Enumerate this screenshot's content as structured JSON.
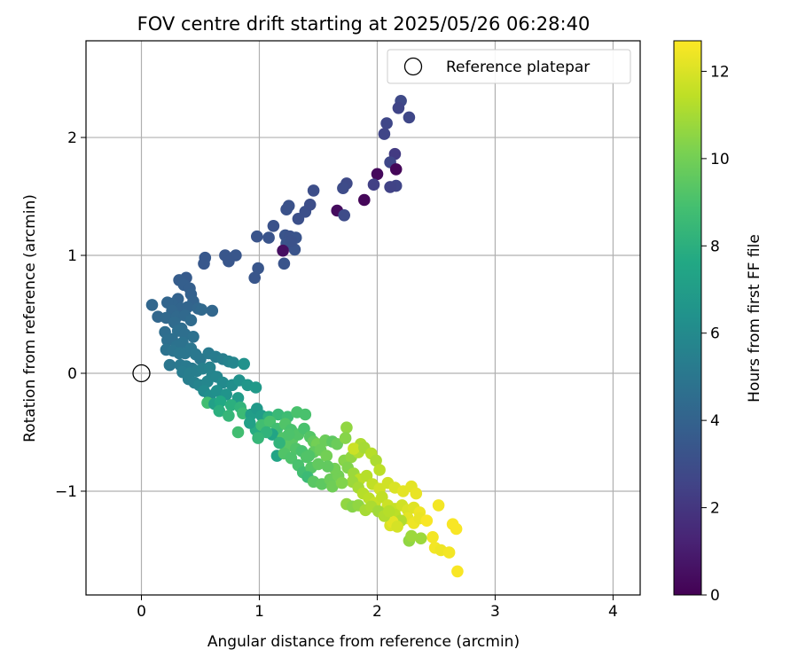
{
  "chart_data": {
    "type": "scatter",
    "title": "FOV centre drift starting at 2025/05/26 06:28:40",
    "xlabel": "Angular distance from reference (arcmin)",
    "ylabel": "Rotation from reference (arcmin)",
    "xlim": [
      -0.47,
      4.23
    ],
    "ylim": [
      -1.88,
      2.82
    ],
    "xticks": [
      0,
      1,
      2,
      3,
      4
    ],
    "yticks": [
      -1,
      0,
      1,
      2
    ],
    "grid": true,
    "legend": {
      "placement": "top-right",
      "entries": [
        "Reference platepar"
      ]
    },
    "reference_point": {
      "x": 0,
      "y": 0,
      "label": "Reference platepar"
    },
    "colorbar": {
      "label": "Hours from first FF file",
      "colormap": "viridis",
      "range": [
        0,
        12.7
      ],
      "ticks": [
        0,
        2,
        4,
        6,
        8,
        10,
        12
      ]
    },
    "points": [
      [
        2.2,
        2.31,
        2.8
      ],
      [
        2.18,
        2.25,
        2.6
      ],
      [
        2.27,
        2.17,
        2.7
      ],
      [
        2.08,
        2.12,
        2.7
      ],
      [
        2.06,
        2.03,
        2.6
      ],
      [
        2.15,
        1.86,
        2.2
      ],
      [
        2.11,
        1.79,
        2.7
      ],
      [
        2.16,
        1.73,
        0.2
      ],
      [
        2.0,
        1.69,
        0.3
      ],
      [
        1.97,
        1.6,
        2.4
      ],
      [
        2.16,
        1.59,
        2.6
      ],
      [
        2.11,
        1.58,
        2.5
      ],
      [
        1.89,
        1.47,
        0.2
      ],
      [
        1.74,
        1.61,
        2.8
      ],
      [
        1.71,
        1.57,
        2.9
      ],
      [
        1.66,
        1.38,
        0.4
      ],
      [
        1.72,
        1.34,
        2.9
      ],
      [
        1.46,
        1.55,
        3.0
      ],
      [
        1.39,
        1.37,
        3.1
      ],
      [
        1.43,
        1.43,
        3.0
      ],
      [
        1.33,
        1.31,
        3.1
      ],
      [
        1.25,
        1.42,
        3.2
      ],
      [
        1.23,
        1.39,
        3.2
      ],
      [
        1.12,
        1.25,
        3.2
      ],
      [
        1.22,
        1.17,
        3.3
      ],
      [
        1.26,
        1.16,
        3.2
      ],
      [
        1.31,
        1.15,
        3.3
      ],
      [
        1.23,
        1.1,
        3.3
      ],
      [
        1.3,
        1.05,
        3.3
      ],
      [
        1.2,
        1.04,
        0.5
      ],
      [
        1.27,
        1.12,
        3.2
      ],
      [
        1.21,
        0.93,
        3.3
      ],
      [
        0.98,
        1.16,
        3.3
      ],
      [
        1.08,
        1.15,
        3.3
      ],
      [
        0.99,
        0.89,
        3.4
      ],
      [
        0.96,
        0.81,
        3.4
      ],
      [
        0.8,
        1.0,
        3.4
      ],
      [
        0.71,
        1.0,
        3.4
      ],
      [
        0.74,
        0.95,
        3.4
      ],
      [
        0.54,
        0.98,
        3.5
      ],
      [
        0.53,
        0.93,
        3.5
      ],
      [
        0.38,
        0.81,
        3.6
      ],
      [
        0.32,
        0.79,
        3.7
      ],
      [
        0.36,
        0.75,
        3.8
      ],
      [
        0.41,
        0.72,
        3.8
      ],
      [
        0.42,
        0.67,
        3.9
      ],
      [
        0.44,
        0.61,
        4.0
      ],
      [
        0.31,
        0.63,
        4.0
      ],
      [
        0.26,
        0.59,
        4.1
      ],
      [
        0.34,
        0.55,
        4.1
      ],
      [
        0.39,
        0.56,
        4.1
      ],
      [
        0.22,
        0.6,
        4.1
      ],
      [
        0.26,
        0.53,
        4.2
      ],
      [
        0.09,
        0.58,
        4.2
      ],
      [
        0.14,
        0.48,
        4.2
      ],
      [
        0.21,
        0.47,
        4.3
      ],
      [
        0.3,
        0.48,
        4.3
      ],
      [
        0.37,
        0.49,
        4.3
      ],
      [
        0.42,
        0.45,
        4.4
      ],
      [
        0.48,
        0.55,
        4.2
      ],
      [
        0.6,
        0.53,
        4.2
      ],
      [
        0.51,
        0.54,
        4.3
      ],
      [
        0.28,
        0.43,
        4.4
      ],
      [
        0.34,
        0.38,
        4.5
      ],
      [
        0.31,
        0.36,
        4.6
      ],
      [
        0.2,
        0.35,
        4.5
      ],
      [
        0.22,
        0.28,
        4.6
      ],
      [
        0.26,
        0.29,
        4.6
      ],
      [
        0.37,
        0.33,
        4.6
      ],
      [
        0.44,
        0.31,
        4.7
      ],
      [
        0.35,
        0.26,
        4.8
      ],
      [
        0.3,
        0.23,
        4.8
      ],
      [
        0.21,
        0.2,
        4.8
      ],
      [
        0.27,
        0.19,
        4.9
      ],
      [
        0.32,
        0.17,
        5.0
      ],
      [
        0.37,
        0.17,
        5.0
      ],
      [
        0.42,
        0.21,
        5.0
      ],
      [
        0.46,
        0.16,
        5.1
      ],
      [
        0.5,
        0.12,
        5.1
      ],
      [
        0.57,
        0.17,
        5.2
      ],
      [
        0.63,
        0.14,
        5.3
      ],
      [
        0.69,
        0.12,
        5.4
      ],
      [
        0.74,
        0.1,
        5.6
      ],
      [
        0.78,
        0.09,
        5.8
      ],
      [
        0.87,
        0.08,
        6.4
      ],
      [
        0.24,
        0.07,
        5.0
      ],
      [
        0.33,
        0.07,
        5.1
      ],
      [
        0.38,
        0.06,
        5.2
      ],
      [
        0.43,
        0.04,
        5.2
      ],
      [
        0.35,
        0.01,
        5.3
      ],
      [
        0.41,
        0.0,
        5.4
      ],
      [
        0.47,
        0.02,
        5.4
      ],
      [
        0.52,
        0.04,
        5.5
      ],
      [
        0.58,
        0.05,
        5.6
      ],
      [
        0.6,
        -0.02,
        5.7
      ],
      [
        0.4,
        -0.05,
        5.4
      ],
      [
        0.45,
        -0.08,
        5.5
      ],
      [
        0.49,
        -0.1,
        5.7
      ],
      [
        0.56,
        -0.07,
        5.8
      ],
      [
        0.64,
        -0.03,
        5.8
      ],
      [
        0.69,
        -0.08,
        6.0
      ],
      [
        0.77,
        -0.1,
        6.2
      ],
      [
        0.83,
        -0.06,
        6.4
      ],
      [
        0.9,
        -0.1,
        6.6
      ],
      [
        0.97,
        -0.12,
        6.8
      ],
      [
        0.53,
        -0.15,
        6.0
      ],
      [
        0.58,
        -0.19,
        6.2
      ],
      [
        0.64,
        -0.15,
        6.3
      ],
      [
        0.72,
        -0.18,
        6.5
      ],
      [
        0.82,
        -0.21,
        6.9
      ],
      [
        0.56,
        -0.25,
        8.8
      ],
      [
        0.62,
        -0.26,
        7.2
      ],
      [
        0.67,
        -0.24,
        7.6
      ],
      [
        0.76,
        -0.27,
        8.0
      ],
      [
        0.84,
        -0.29,
        8.2
      ],
      [
        0.66,
        -0.32,
        8.0
      ],
      [
        0.74,
        -0.36,
        8.4
      ],
      [
        0.86,
        -0.34,
        8.6
      ],
      [
        0.93,
        -0.35,
        7.0
      ],
      [
        0.98,
        -0.3,
        6.8
      ],
      [
        1.02,
        -0.36,
        7.0
      ],
      [
        1.08,
        -0.37,
        8.0
      ],
      [
        1.16,
        -0.35,
        8.5
      ],
      [
        1.24,
        -0.37,
        8.7
      ],
      [
        1.32,
        -0.33,
        9.0
      ],
      [
        1.39,
        -0.35,
        9.0
      ],
      [
        0.97,
        -0.48,
        7.8
      ],
      [
        0.92,
        -0.42,
        7.2
      ],
      [
        1.02,
        -0.44,
        8.8
      ],
      [
        1.09,
        -0.41,
        9.0
      ],
      [
        1.15,
        -0.47,
        8.8
      ],
      [
        1.11,
        -0.52,
        7.4
      ],
      [
        1.06,
        -0.5,
        8.2
      ],
      [
        0.82,
        -0.5,
        8.8
      ],
      [
        0.99,
        -0.55,
        8.4
      ],
      [
        1.22,
        -0.43,
        9.2
      ],
      [
        1.27,
        -0.48,
        9.0
      ],
      [
        1.2,
        -0.55,
        9.2
      ],
      [
        1.28,
        -0.56,
        9.4
      ],
      [
        1.33,
        -0.52,
        9.2
      ],
      [
        1.38,
        -0.47,
        9.0
      ],
      [
        1.43,
        -0.54,
        9.3
      ],
      [
        1.46,
        -0.58,
        9.6
      ],
      [
        1.49,
        -0.6,
        10.0
      ],
      [
        1.56,
        -0.57,
        9.8
      ],
      [
        1.62,
        -0.58,
        9.5
      ],
      [
        1.66,
        -0.6,
        9.8
      ],
      [
        1.24,
        -0.62,
        9.4
      ],
      [
        1.31,
        -0.64,
        9.2
      ],
      [
        1.36,
        -0.66,
        9.0
      ],
      [
        1.15,
        -0.7,
        7.4
      ],
      [
        1.21,
        -0.68,
        9.2
      ],
      [
        1.27,
        -0.72,
        9.1
      ],
      [
        1.4,
        -0.71,
        9.2
      ],
      [
        1.46,
        -0.67,
        9.6
      ],
      [
        1.52,
        -0.65,
        9.8
      ],
      [
        1.57,
        -0.7,
        10.0
      ],
      [
        1.33,
        -0.78,
        9.0
      ],
      [
        1.37,
        -0.84,
        8.8
      ],
      [
        1.44,
        -0.8,
        9.3
      ],
      [
        1.5,
        -0.77,
        9.6
      ],
      [
        1.41,
        -0.88,
        8.6
      ],
      [
        1.46,
        -0.92,
        9.4
      ],
      [
        1.53,
        -0.94,
        9.5
      ],
      [
        1.6,
        -0.9,
        9.8
      ],
      [
        1.67,
        -0.87,
        10.0
      ],
      [
        1.64,
        -0.81,
        10.0
      ],
      [
        1.72,
        -0.74,
        10.4
      ],
      [
        1.78,
        -0.71,
        10.6
      ],
      [
        1.84,
        -0.67,
        11.2
      ],
      [
        1.86,
        -0.6,
        11.1
      ],
      [
        1.8,
        -0.64,
        11.7
      ],
      [
        1.74,
        -0.46,
        10.6
      ],
      [
        1.73,
        -0.55,
        10.4
      ],
      [
        1.89,
        -0.63,
        11.0
      ],
      [
        1.95,
        -0.68,
        11.3
      ],
      [
        1.99,
        -0.74,
        11.1
      ],
      [
        2.02,
        -0.82,
        11.4
      ],
      [
        1.75,
        -0.8,
        10.3
      ],
      [
        1.8,
        -0.85,
        10.8
      ],
      [
        1.85,
        -0.9,
        11.4
      ],
      [
        1.91,
        -0.87,
        11.3
      ],
      [
        1.96,
        -0.94,
        11.5
      ],
      [
        2.02,
        -0.98,
        11.8
      ],
      [
        2.09,
        -0.93,
        11.8
      ],
      [
        2.15,
        -0.97,
        12.0
      ],
      [
        2.22,
        -1.0,
        12.2
      ],
      [
        2.29,
        -0.96,
        12.2
      ],
      [
        2.33,
        -1.02,
        12.3
      ],
      [
        1.79,
        -0.92,
        10.8
      ],
      [
        1.84,
        -0.97,
        11.0
      ],
      [
        1.88,
        -1.02,
        11.3
      ],
      [
        1.93,
        -1.06,
        11.4
      ],
      [
        1.98,
        -1.1,
        11.6
      ],
      [
        2.04,
        -1.05,
        11.5
      ],
      [
        2.09,
        -1.12,
        11.7
      ],
      [
        2.15,
        -1.15,
        11.6
      ],
      [
        2.21,
        -1.12,
        11.8
      ],
      [
        2.26,
        -1.16,
        12.0
      ],
      [
        2.31,
        -1.14,
        12.1
      ],
      [
        2.36,
        -1.18,
        12.4
      ],
      [
        2.26,
        -1.23,
        12.2
      ],
      [
        2.31,
        -1.27,
        12.4
      ],
      [
        2.36,
        -1.23,
        12.3
      ],
      [
        2.42,
        -1.25,
        12.6
      ],
      [
        2.15,
        -1.2,
        11.4
      ],
      [
        2.2,
        -1.25,
        11.2
      ],
      [
        2.11,
        -1.29,
        12.0
      ],
      [
        2.13,
        -1.26,
        12.2
      ],
      [
        2.17,
        -1.3,
        11.9
      ],
      [
        1.74,
        -1.11,
        10.6
      ],
      [
        1.79,
        -1.13,
        10.4
      ],
      [
        1.84,
        -1.12,
        10.6
      ],
      [
        1.9,
        -1.16,
        11.0
      ],
      [
        1.95,
        -1.13,
        11.1
      ],
      [
        2.01,
        -1.17,
        10.9
      ],
      [
        2.06,
        -1.21,
        11.2
      ],
      [
        2.1,
        -1.17,
        11.3
      ],
      [
        2.52,
        -1.12,
        12.5
      ],
      [
        2.64,
        -1.28,
        12.6
      ],
      [
        2.67,
        -1.32,
        12.6
      ],
      [
        2.47,
        -1.39,
        12.5
      ],
      [
        2.37,
        -1.4,
        10.8
      ],
      [
        2.27,
        -1.42,
        10.6
      ],
      [
        2.29,
        -1.38,
        10.8
      ],
      [
        2.49,
        -1.48,
        12.5
      ],
      [
        2.54,
        -1.5,
        12.4
      ],
      [
        2.61,
        -1.52,
        12.5
      ],
      [
        2.68,
        -1.68,
        12.6
      ],
      [
        1.42,
        -0.7,
        9.2
      ],
      [
        1.25,
        -0.52,
        9.1
      ],
      [
        1.17,
        -0.59,
        8.2
      ],
      [
        1.58,
        -0.79,
        9.6
      ],
      [
        1.62,
        -0.96,
        9.9
      ],
      [
        1.7,
        -0.93,
        10.3
      ]
    ]
  }
}
